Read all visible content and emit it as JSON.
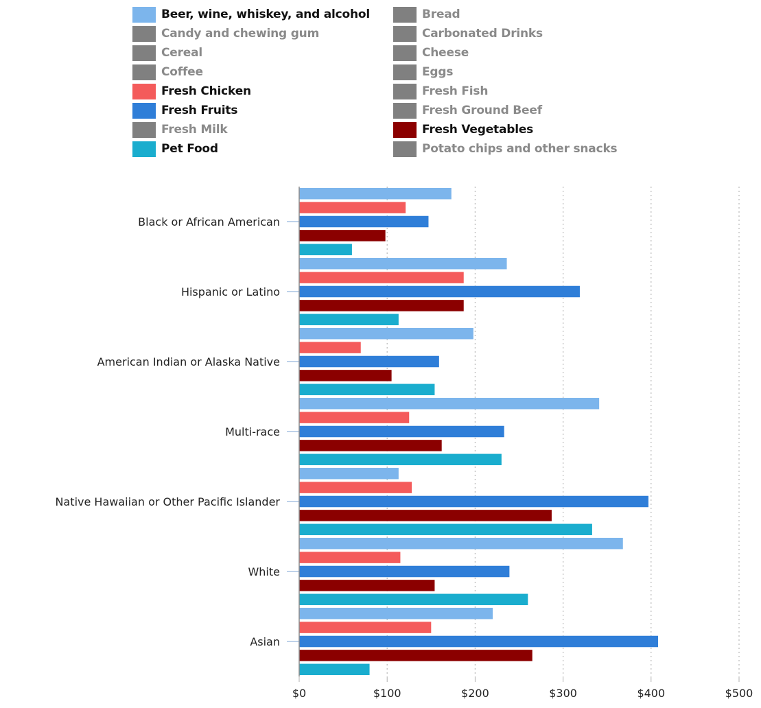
{
  "legend": {
    "items": [
      {
        "label": "Beer, wine, whiskey, and alcohol",
        "color": "#7cb5ec",
        "visible": true
      },
      {
        "label": "Bread",
        "color": "#808080",
        "visible": false
      },
      {
        "label": "Candy and chewing gum",
        "color": "#808080",
        "visible": false
      },
      {
        "label": "Carbonated Drinks",
        "color": "#808080",
        "visible": false
      },
      {
        "label": "Cereal",
        "color": "#808080",
        "visible": false
      },
      {
        "label": "Cheese",
        "color": "#808080",
        "visible": false
      },
      {
        "label": "Coffee",
        "color": "#808080",
        "visible": false
      },
      {
        "label": "Eggs",
        "color": "#808080",
        "visible": false
      },
      {
        "label": "Fresh Chicken",
        "color": "#f45b5b",
        "visible": true
      },
      {
        "label": "Fresh Fish",
        "color": "#808080",
        "visible": false
      },
      {
        "label": "Fresh Fruits",
        "color": "#2f7ed8",
        "visible": true
      },
      {
        "label": "Fresh Ground Beef",
        "color": "#808080",
        "visible": false
      },
      {
        "label": "Fresh Milk",
        "color": "#808080",
        "visible": false
      },
      {
        "label": "Fresh Vegetables",
        "color": "#8b0000",
        "visible": true
      },
      {
        "label": "Pet Food",
        "color": "#1aadce",
        "visible": true
      },
      {
        "label": "Potato chips and other snacks",
        "color": "#808080",
        "visible": false
      }
    ]
  },
  "chart_data": {
    "type": "bar",
    "orientation": "horizontal",
    "categories": [
      "Black or African American",
      "Hispanic or Latino",
      "American Indian or Alaska Native",
      "Multi-race",
      "Native Hawaiian or Other Pacific Islander",
      "White",
      "Asian"
    ],
    "series": [
      {
        "name": "Beer, wine, whiskey, and alcohol",
        "color": "#7cb5ec",
        "values": [
          173,
          236,
          198,
          341,
          113,
          368,
          220
        ]
      },
      {
        "name": "Fresh Chicken",
        "color": "#f45b5b",
        "values": [
          121,
          187,
          70,
          125,
          128,
          115,
          150
        ]
      },
      {
        "name": "Fresh Fruits",
        "color": "#2f7ed8",
        "values": [
          147,
          319,
          159,
          233,
          397,
          239,
          408
        ]
      },
      {
        "name": "Fresh Vegetables",
        "color": "#8b0000",
        "values": [
          98,
          187,
          105,
          162,
          287,
          154,
          265
        ]
      },
      {
        "name": "Pet Food",
        "color": "#1aadce",
        "values": [
          60,
          113,
          154,
          230,
          333,
          260,
          80
        ]
      }
    ],
    "x_ticks": [
      "$0",
      "$100",
      "$200",
      "$300",
      "$400",
      "$500"
    ],
    "xlim": [
      0,
      500
    ],
    "grid": true,
    "legend_position": "top"
  }
}
